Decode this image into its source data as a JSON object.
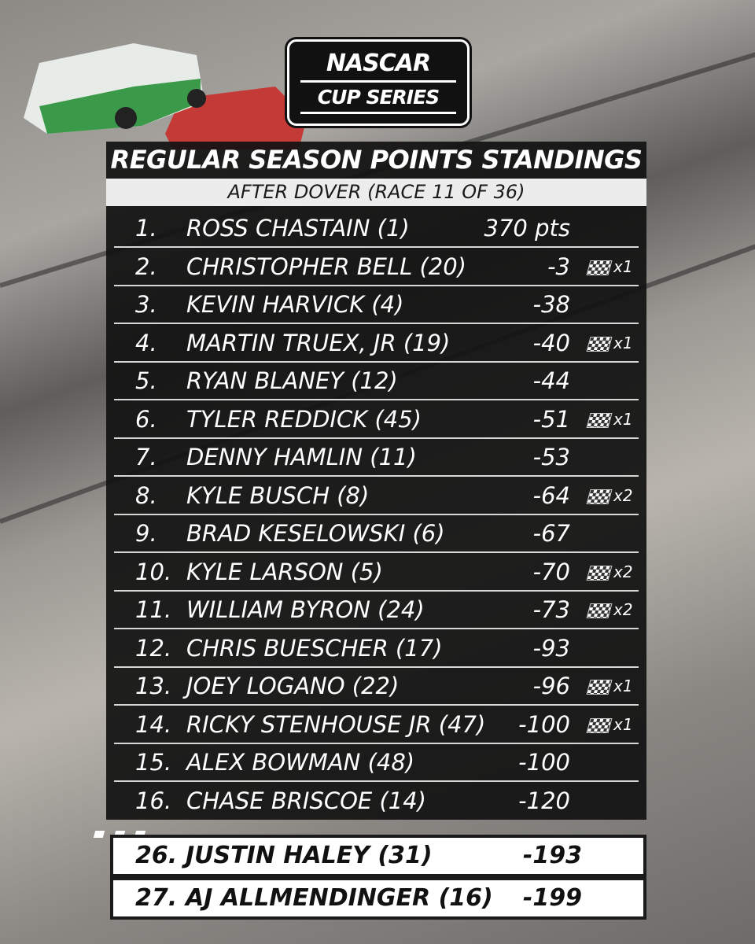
{
  "logo": {
    "brand": "NASCAR",
    "series": "CUP SERIES"
  },
  "header": {
    "title": "REGULAR SEASON POINTS STANDINGS",
    "subtitle": "AFTER DOVER (RACE 11 OF 36)"
  },
  "table": {
    "rows": [
      {
        "pos": "1.",
        "driver": "ROSS CHASTAIN (1)",
        "points": "370 pts"
      },
      {
        "pos": "2.",
        "driver": "CHRISTOPHER BELL (20)",
        "points": "-3",
        "wins": "x1"
      },
      {
        "pos": "3.",
        "driver": "KEVIN HARVICK (4)",
        "points": "-38"
      },
      {
        "pos": "4.",
        "driver": "MARTIN TRUEX, JR (19)",
        "points": "-40",
        "wins": "x1"
      },
      {
        "pos": "5.",
        "driver": "RYAN BLANEY (12)",
        "points": "-44"
      },
      {
        "pos": "6.",
        "driver": "TYLER REDDICK (45)",
        "points": "-51",
        "wins": "x1"
      },
      {
        "pos": "7.",
        "driver": "DENNY HAMLIN (11)",
        "points": "-53"
      },
      {
        "pos": "8.",
        "driver": "KYLE BUSCH (8)",
        "points": "-64",
        "wins": "x2"
      },
      {
        "pos": "9.",
        "driver": "BRAD KESELOWSKI (6)",
        "points": "-67"
      },
      {
        "pos": "10.",
        "driver": "KYLE LARSON (5)",
        "points": "-70",
        "wins": "x2"
      },
      {
        "pos": "11.",
        "driver": "WILLIAM BYRON (24)",
        "points": "-73",
        "wins": "x2"
      },
      {
        "pos": "12.",
        "driver": "CHRIS BUESCHER (17)",
        "points": "-93"
      },
      {
        "pos": "13.",
        "driver": "JOEY LOGANO (22)",
        "points": "-96",
        "wins": "x1"
      },
      {
        "pos": "14.",
        "driver": "RICKY STENHOUSE JR (47)",
        "points": "-100",
        "wins": "x1"
      },
      {
        "pos": "15.",
        "driver": "ALEX BOWMAN (48)",
        "points": "-100"
      },
      {
        "pos": "16.",
        "driver": "CHASE BRISCOE (14)",
        "points": "-120"
      }
    ],
    "extra_rows": [
      {
        "pos": "26.",
        "driver": "JUSTIN HALEY (31)",
        "points": "-193"
      },
      {
        "pos": "27.",
        "driver": "AJ ALLMENDINGER (16)",
        "points": "-199"
      }
    ]
  }
}
